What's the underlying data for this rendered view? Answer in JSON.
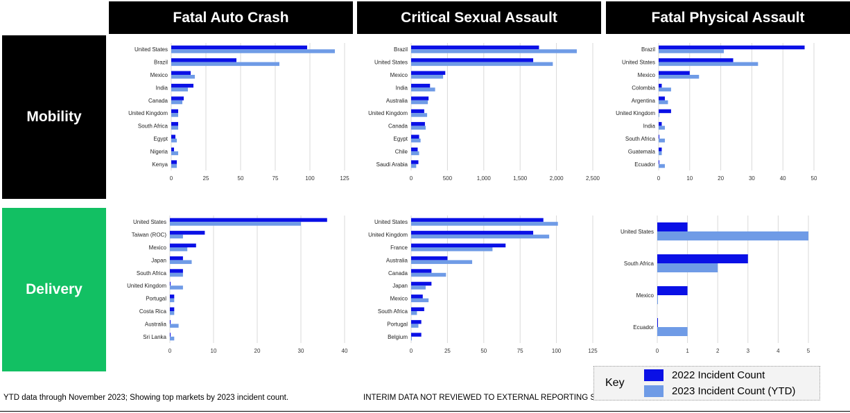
{
  "columns": {
    "fatal_auto": "Fatal Auto Crash",
    "sexual_assault": "Critical Sexual Assault",
    "physical_assault": "Fatal Physical Assault"
  },
  "rows": {
    "mobility": "Mobility",
    "delivery": "Delivery"
  },
  "colors": {
    "series_2022": "#0a10e6",
    "series_2023": "#6f9be6",
    "mobility_label_bg": "#000000",
    "delivery_label_bg": "#12c063"
  },
  "footer": {
    "note": "YTD data through November 2023; Showing top markets by 2023 incident count.",
    "interim": "INTERIM DATA NOT REVIEWED TO EXTERNAL REPORTING STANDARD"
  },
  "key": {
    "title": "Key",
    "label_2022": "2022 Incident Count",
    "label_2023": "2023 Incident Count (YTD)"
  },
  "chart_data": [
    {
      "type": "bar",
      "orientation": "horizontal",
      "panel": "Mobility - Fatal Auto Crash",
      "categories": [
        "United States",
        "Brazil",
        "Mexico",
        "India",
        "Canada",
        "United Kingdom",
        "South Africa",
        "Egypt",
        "Nigeria",
        "Kenya"
      ],
      "series": [
        {
          "name": "2022 Incident Count",
          "values": [
            98,
            47,
            14,
            16,
            9,
            5,
            5,
            3,
            2,
            4
          ]
        },
        {
          "name": "2023 Incident Count (YTD)",
          "values": [
            118,
            78,
            17,
            12,
            8,
            5,
            5,
            4,
            5,
            4
          ]
        }
      ],
      "xticks": [
        "0",
        "25",
        "50",
        "75",
        "100",
        "125"
      ],
      "xlim": [
        0,
        125
      ]
    },
    {
      "type": "bar",
      "orientation": "horizontal",
      "panel": "Mobility - Critical Sexual Assault",
      "categories": [
        "Brazil",
        "United States",
        "Mexico",
        "India",
        "Australia",
        "United Kingdom",
        "Canada",
        "Egypt",
        "Chile",
        "Saudi Arabia"
      ],
      "series": [
        {
          "name": "2022 Incident Count",
          "values": [
            1760,
            1680,
            470,
            260,
            240,
            180,
            190,
            110,
            90,
            100
          ]
        },
        {
          "name": "2023 Incident Count (YTD)",
          "values": [
            2280,
            1950,
            440,
            330,
            230,
            220,
            200,
            130,
            110,
            70
          ]
        }
      ],
      "xticks": [
        "0",
        "500",
        "1,000",
        "1,500",
        "2,000",
        "2,500"
      ],
      "xlim": [
        0,
        2500
      ]
    },
    {
      "type": "bar",
      "orientation": "horizontal",
      "panel": "Mobility - Fatal Physical Assault",
      "categories": [
        "Brazil",
        "United States",
        "Mexico",
        "Colombia",
        "Argentina",
        "United Kingdom",
        "India",
        "South Africa",
        "Guatemala",
        "Ecuador"
      ],
      "series": [
        {
          "name": "2022 Incident Count",
          "values": [
            47,
            24,
            10,
            1,
            2,
            4,
            1,
            0,
            1,
            0
          ]
        },
        {
          "name": "2023 Incident Count (YTD)",
          "values": [
            21,
            32,
            13,
            4,
            3,
            0,
            2,
            2,
            1,
            2
          ]
        }
      ],
      "xticks": [
        "0",
        "10",
        "20",
        "30",
        "40",
        "50"
      ],
      "xlim": [
        0,
        50
      ]
    },
    {
      "type": "bar",
      "orientation": "horizontal",
      "panel": "Delivery - Fatal Auto Crash",
      "categories": [
        "United States",
        "Taiwan (ROC)",
        "Mexico",
        "Japan",
        "South Africa",
        "United Kingdom",
        "Portugal",
        "Costa Rica",
        "Australia",
        "Sri Lanka"
      ],
      "series": [
        {
          "name": "2022 Incident Count",
          "values": [
            36,
            8,
            6,
            3,
            3,
            0,
            1,
            1,
            0,
            0
          ]
        },
        {
          "name": "2023 Incident Count (YTD)",
          "values": [
            30,
            3,
            4,
            5,
            3,
            3,
            1,
            1,
            2,
            1
          ]
        }
      ],
      "xticks": [
        "0",
        "10",
        "20",
        "30",
        "40"
      ],
      "xlim": [
        0,
        40
      ]
    },
    {
      "type": "bar",
      "orientation": "horizontal",
      "panel": "Delivery - Critical Sexual Assault",
      "categories": [
        "United States",
        "United Kingdom",
        "France",
        "Australia",
        "Canada",
        "Japan",
        "Mexico",
        "South Africa",
        "Portugal",
        "Belgium"
      ],
      "series": [
        {
          "name": "2022 Incident Count",
          "values": [
            91,
            84,
            65,
            25,
            14,
            14,
            8,
            9,
            7,
            7
          ]
        },
        {
          "name": "2023 Incident Count (YTD)",
          "values": [
            101,
            95,
            56,
            42,
            24,
            10,
            12,
            4,
            5,
            0
          ]
        }
      ],
      "xticks": [
        "0",
        "25",
        "50",
        "75",
        "100",
        "125"
      ],
      "xlim": [
        0,
        125
      ]
    },
    {
      "type": "bar",
      "orientation": "horizontal",
      "panel": "Delivery - Fatal Physical Assault",
      "categories": [
        "United States",
        "South Africa",
        "Mexico",
        "Ecuador"
      ],
      "series": [
        {
          "name": "2022 Incident Count",
          "values": [
            1,
            3,
            1,
            0
          ]
        },
        {
          "name": "2023 Incident Count (YTD)",
          "values": [
            5,
            2,
            0,
            1
          ]
        }
      ],
      "xticks": [
        "0",
        "1",
        "2",
        "3",
        "4",
        "5"
      ],
      "xlim": [
        0,
        5
      ]
    }
  ]
}
